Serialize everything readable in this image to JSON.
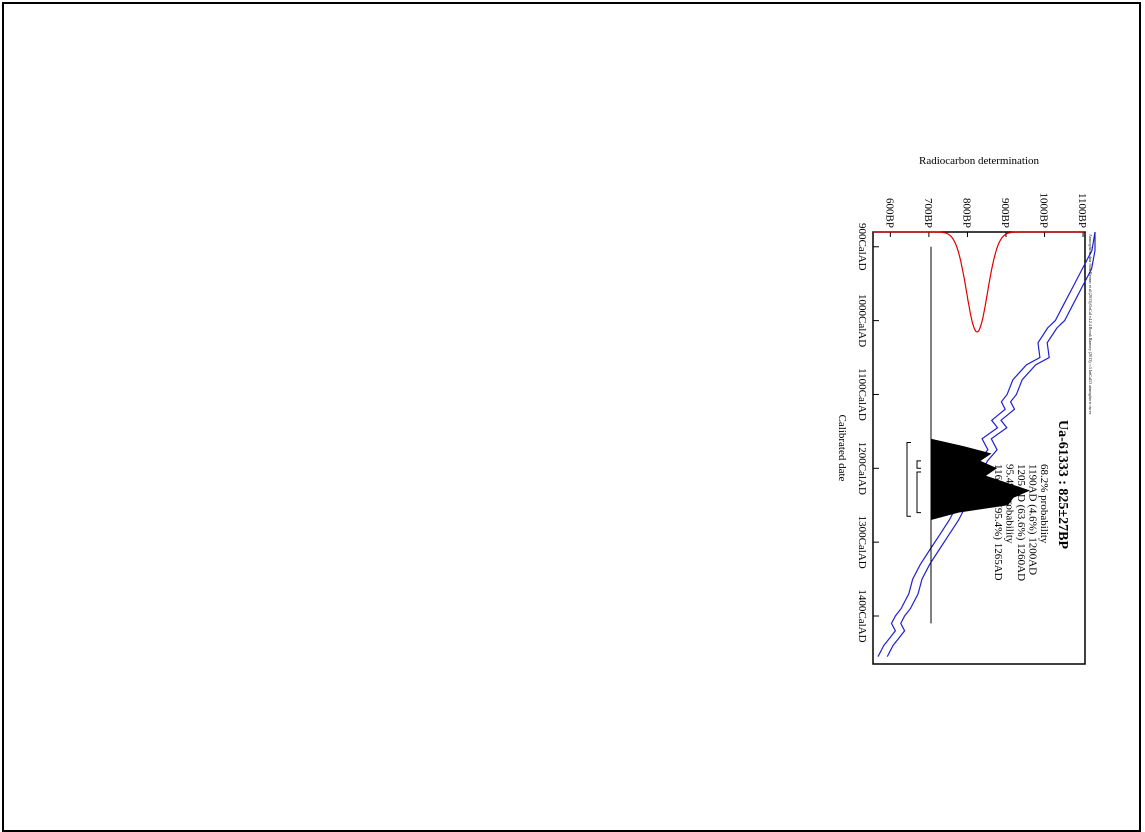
{
  "chart_data": {
    "type": "line",
    "orientation": "rotated 90° clockwise",
    "title": "Ua-61333 : 825±27BP",
    "credit": "Atmospheric data from Reimer et al (2013);OxCal v4.2.4 Bronk Ramsey (2013); r:5 IntCal13 atmospheric curve",
    "xlabel": "Calibrated date",
    "ylabel": "Radiocarbon determination",
    "x_unit": "CalAD",
    "y_unit": "BP",
    "xlim": [
      880,
      1465
    ],
    "ylim": [
      555,
      1105
    ],
    "x_ticks": [
      900,
      1000,
      1100,
      1200,
      1300,
      1400
    ],
    "x_tick_labels": [
      "900CalAD",
      "1000CalAD",
      "1100CalAD",
      "1200CalAD",
      "1300CalAD",
      "1400CalAD"
    ],
    "y_ticks": [
      600,
      700,
      800,
      900,
      1000,
      1100
    ],
    "y_tick_labels": [
      "600BP",
      "700BP",
      "800BP",
      "900BP",
      "1000BP",
      "1100BP"
    ],
    "legend": [
      "68.2% probability",
      "1190AD (4.6%) 1200AD",
      "1205AD (63.6%) 1260AD",
      "95.4% probability",
      "1165AD (95.4%) 1265AD"
    ],
    "measurement": {
      "name": "Radiocarbon determination",
      "mean_bp": 825,
      "sigma": 27,
      "color": "#e00000"
    },
    "calibration_curve": {
      "name": "IntCal13",
      "color": "#2020d0",
      "x": [
        880,
        905,
        930,
        955,
        980,
        1000,
        1010,
        1030,
        1050,
        1060,
        1080,
        1100,
        1110,
        1120,
        1135,
        1145,
        1160,
        1175,
        1190,
        1200,
        1220,
        1240,
        1260,
        1270,
        1290,
        1310,
        1330,
        1350,
        1370,
        1390,
        1400,
        1410,
        1420,
        1430,
        1440,
        1455
      ],
      "y": [
        1160,
        1135,
        1110,
        1085,
        1060,
        1040,
        1020,
        995,
        1000,
        965,
        930,
        915,
        900,
        910,
        875,
        890,
        850,
        865,
        840,
        830,
        820,
        790,
        775,
        765,
        740,
        715,
        690,
        670,
        660,
        640,
        625,
        615,
        625,
        610,
        595,
        580
      ],
      "band_halfwidth": 12
    },
    "posterior": {
      "color": "#000000",
      "x": [
        1160,
        1170,
        1180,
        1190,
        1200,
        1210,
        1220,
        1230,
        1240,
        1250,
        1260,
        1270
      ],
      "y": [
        0,
        0.3,
        0.55,
        0.45,
        0.6,
        0.5,
        0.7,
        0.9,
        0.75,
        0.7,
        0.25,
        0
      ]
    },
    "ranges_68": [
      [
        1190,
        1200
      ],
      [
        1205,
        1260
      ]
    ],
    "ranges_95": [
      [
        1165,
        1265
      ]
    ],
    "baseline_range": [
      900,
      1410
    ]
  }
}
